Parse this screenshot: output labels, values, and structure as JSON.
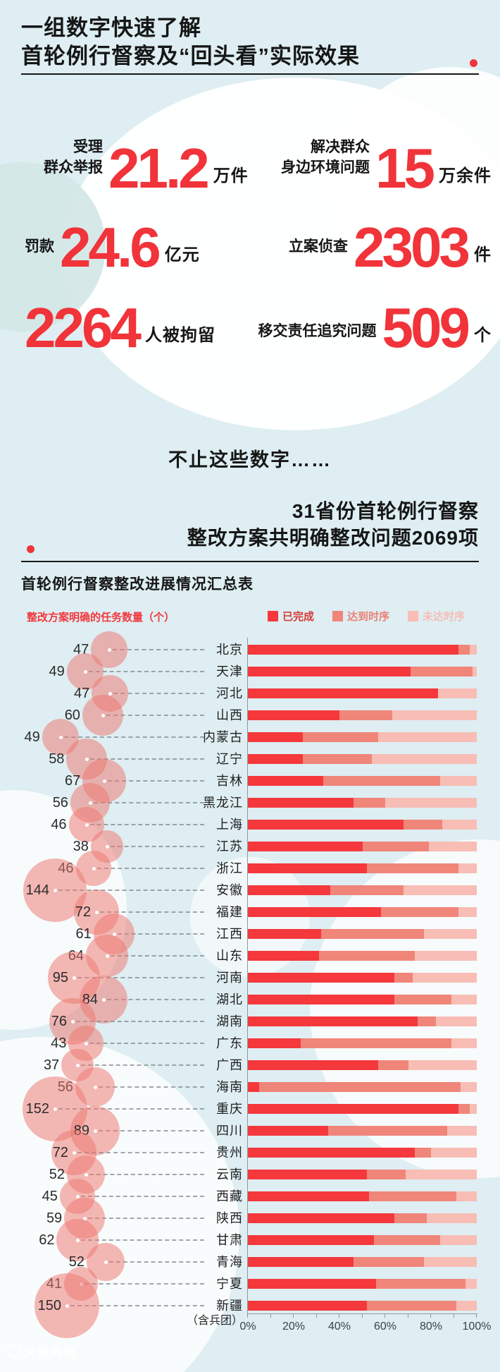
{
  "header": {
    "title_line1": "一组数字快速了解",
    "title_line2": "首轮例行督察及“回头看”实际效果"
  },
  "stats": {
    "rows": [
      [
        {
          "label": "受理\n群众举报",
          "value": "21.2",
          "unit": "万件"
        },
        {
          "label": "解决群众\n身边环境问题",
          "value": "15",
          "unit": "万余件"
        }
      ],
      [
        {
          "label": "罚款",
          "value": "24.6",
          "unit": "亿元"
        },
        {
          "label": "立案侦查",
          "value": "2303",
          "unit": "件"
        }
      ],
      [
        {
          "label": "",
          "value": "2264",
          "unit": "人被拘留"
        },
        {
          "label": "移交责任追究问题",
          "value": "509",
          "unit": "个"
        }
      ]
    ]
  },
  "interlude": "不止这些数字……",
  "section": {
    "title_line1": "31省份首轮例行督察",
    "title_line2": "整改方案共明确整改问题2069项"
  },
  "chart_data": {
    "type": "bar",
    "subtype": "horizontal-stacked-percent-with-bubbles",
    "title": "首轮例行督察整改进展情况汇总表",
    "bubble_axis_label": "整改方案明确的任务数量（个）",
    "legend": [
      "已完成",
      "达到时序",
      "未达时序"
    ],
    "legend_colors": [
      "#F4383C",
      "#F0857A",
      "#F8BDB5"
    ],
    "legend_text_colors": [
      "#D93B35",
      "#EC8076",
      "#F6BDB5"
    ],
    "x_ticks": [
      "0%",
      "20%",
      "40%",
      "60%",
      "80%",
      "100%"
    ],
    "xlim": [
      0,
      100
    ],
    "categories": [
      "北京",
      "天津",
      "河北",
      "山西",
      "内蒙古",
      "辽宁",
      "吉林",
      "黑龙江",
      "上海",
      "江苏",
      "浙江",
      "安徽",
      "福建",
      "江西",
      "山东",
      "河南",
      "湖北",
      "湖南",
      "广东",
      "广西",
      "海南",
      "重庆",
      "四川",
      "贵州",
      "云南",
      "西藏",
      "陕西",
      "甘肃",
      "青海",
      "宁夏",
      "新疆"
    ],
    "task_counts": [
      47,
      49,
      47,
      60,
      49,
      58,
      67,
      56,
      46,
      38,
      46,
      144,
      72,
      61,
      64,
      95,
      84,
      76,
      43,
      37,
      56,
      152,
      89,
      72,
      52,
      45,
      59,
      62,
      52,
      41,
      150
    ],
    "task_counts_total": 2069,
    "series": [
      {
        "name": "已完成",
        "values": [
          92,
          71,
          83,
          40,
          24,
          24,
          33,
          46,
          68,
          50,
          52,
          36,
          58,
          32,
          31,
          64,
          64,
          74,
          23,
          57,
          5,
          92,
          35,
          73,
          52,
          53,
          64,
          55,
          46,
          56,
          52
        ]
      },
      {
        "name": "达到时序",
        "values": [
          5,
          27,
          0,
          23,
          33,
          30,
          51,
          14,
          17,
          29,
          40,
          32,
          34,
          45,
          42,
          8,
          25,
          8,
          66,
          13,
          88,
          5,
          52,
          7,
          17,
          38,
          14,
          29,
          31,
          39,
          39
        ]
      },
      {
        "name": "未达时序",
        "values": [
          3,
          2,
          17,
          37,
          43,
          46,
          16,
          40,
          15,
          21,
          8,
          32,
          8,
          23,
          27,
          28,
          11,
          18,
          11,
          30,
          7,
          3,
          13,
          20,
          31,
          9,
          22,
          16,
          23,
          5,
          9
        ]
      }
    ],
    "footnote": "（含兵团）"
  },
  "watermark": "大数跨境"
}
